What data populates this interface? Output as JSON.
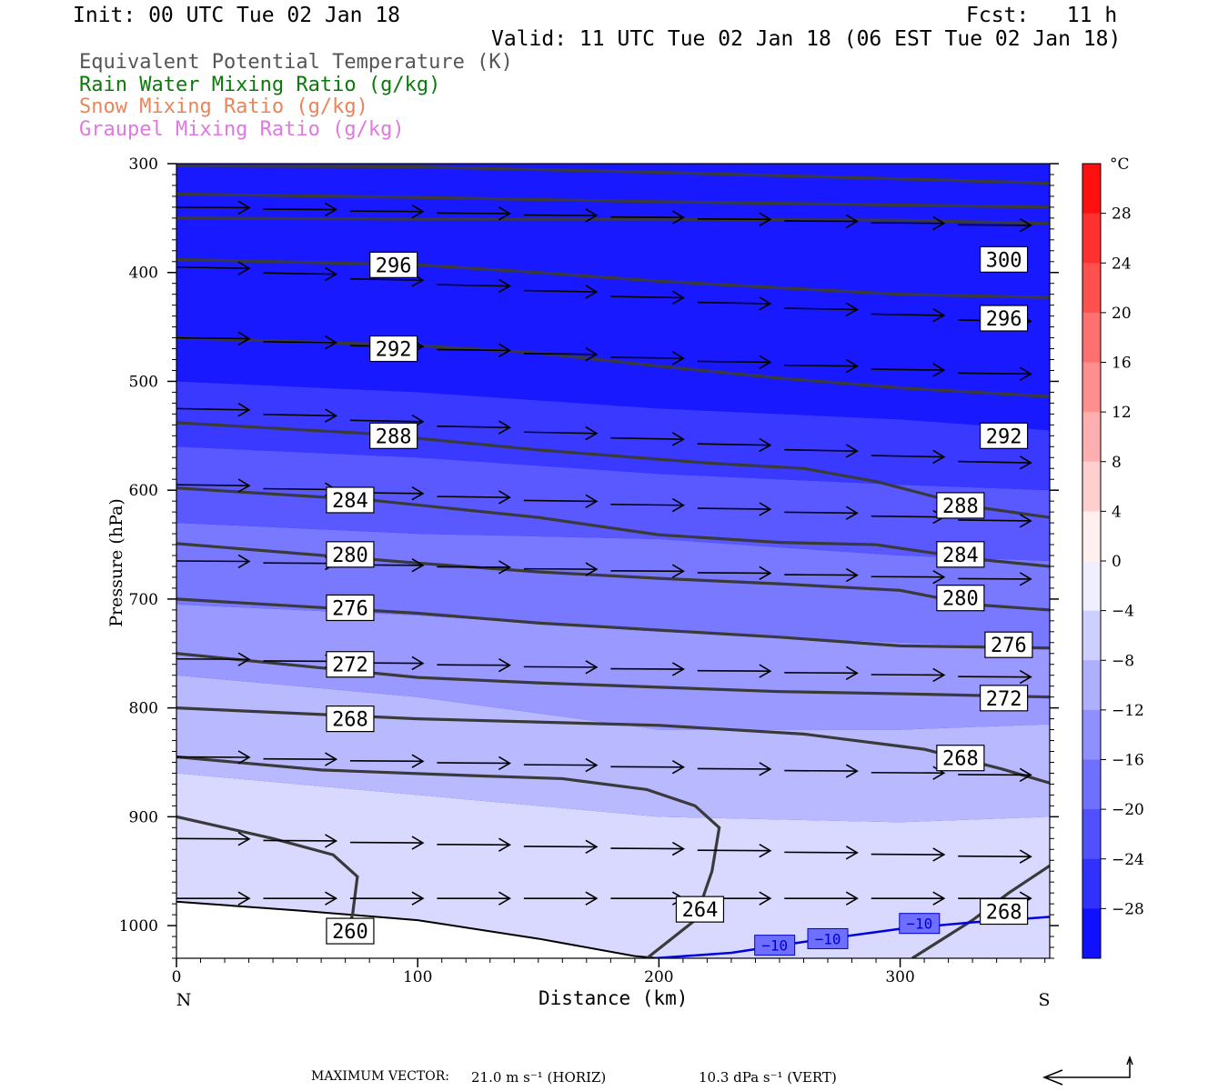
{
  "header": {
    "init": "Init: 00 UTC Tue 02 Jan 18",
    "fcst": "Fcst:   11 h",
    "valid": "Valid: 11 UTC Tue 02 Jan 18 (06 EST Tue 02 Jan 18)",
    "legend": [
      {
        "text": "Equivalent Potential Temperature (K)",
        "color": "#555555"
      },
      {
        "text": "Rain Water Mixing Ratio (g/kg)",
        "color": "#0b7a0b"
      },
      {
        "text": "Snow Mixing Ratio (g/kg)",
        "color": "#e8855a"
      },
      {
        "text": "Graupel Mixing Ratio (g/kg)",
        "color": "#e078e0"
      }
    ]
  },
  "footer": {
    "label": "MAXIMUM VECTOR:",
    "horiz": "21.0 m s⁻¹ (HORIZ)",
    "vert": "10.3 dPa s⁻¹ (VERT)"
  },
  "chart_data": {
    "type": "cross-section",
    "xlabel": "Distance (km)",
    "ylabel": "Pressure (hPa)",
    "xlim": [
      0,
      362
    ],
    "ylim": [
      1030,
      300
    ],
    "x_ticks": [
      0,
      100,
      200,
      300
    ],
    "y_ticks": [
      300,
      400,
      500,
      600,
      700,
      800,
      900,
      1000
    ],
    "left_end_label": "N",
    "right_end_label": "S",
    "colorbar": {
      "unit": "°C",
      "labels": [
        28,
        24,
        20,
        16,
        12,
        8,
        4,
        0,
        -4,
        -8,
        -12,
        -16,
        -20,
        -24,
        -28
      ],
      "min": -32,
      "max": 32,
      "step": 4,
      "warm_color": "#ff0000",
      "cold_color": "#0000ff"
    },
    "theta_e_contours": [
      {
        "label": "300",
        "points": [
          [
            0,
            302
          ],
          [
            100,
            303
          ],
          [
            200,
            308
          ],
          [
            300,
            314
          ],
          [
            362,
            318
          ]
        ]
      },
      {
        "label": "",
        "points": [
          [
            0,
            328
          ],
          [
            100,
            331
          ],
          [
            200,
            335
          ],
          [
            300,
            338
          ],
          [
            362,
            340
          ]
        ]
      },
      {
        "label": "",
        "points": [
          [
            0,
            350
          ],
          [
            100,
            351
          ],
          [
            200,
            351
          ],
          [
            300,
            352
          ],
          [
            362,
            355
          ]
        ]
      },
      {
        "label": "300",
        "points": [
          [
            0,
            388
          ],
          [
            100,
            393
          ],
          [
            150,
            400
          ],
          [
            200,
            408
          ],
          [
            250,
            414
          ],
          [
            300,
            420
          ],
          [
            362,
            423
          ]
        ]
      },
      {
        "label": "296",
        "points": [
          [
            0,
            460
          ],
          [
            100,
            467
          ],
          [
            150,
            474
          ],
          [
            200,
            486
          ],
          [
            250,
            497
          ],
          [
            300,
            506
          ],
          [
            362,
            514
          ]
        ]
      },
      {
        "label": "292",
        "points": [
          [
            0,
            538
          ],
          [
            80,
            548
          ],
          [
            150,
            563
          ],
          [
            220,
            575
          ],
          [
            260,
            580
          ],
          [
            290,
            592
          ],
          [
            330,
            615
          ],
          [
            362,
            625
          ]
        ]
      },
      {
        "label": "288",
        "points": [
          [
            0,
            598
          ],
          [
            80,
            609
          ],
          [
            150,
            625
          ],
          [
            200,
            641
          ],
          [
            250,
            648
          ],
          [
            290,
            650
          ],
          [
            330,
            663
          ],
          [
            362,
            670
          ]
        ]
      },
      {
        "label": "284",
        "points": [
          [
            0,
            649
          ],
          [
            100,
            667
          ],
          [
            150,
            675
          ],
          [
            200,
            681
          ],
          [
            250,
            686
          ],
          [
            300,
            692
          ],
          [
            330,
            705
          ],
          [
            362,
            710
          ]
        ]
      },
      {
        "label": "280",
        "points": [
          [
            0,
            700
          ],
          [
            100,
            713
          ],
          [
            150,
            722
          ],
          [
            250,
            735
          ],
          [
            300,
            743
          ],
          [
            362,
            745
          ]
        ]
      },
      {
        "label": "276",
        "points": [
          [
            0,
            750
          ],
          [
            100,
            772
          ],
          [
            150,
            777
          ],
          [
            250,
            785
          ],
          [
            300,
            787
          ],
          [
            362,
            790
          ]
        ]
      },
      {
        "label": "272",
        "points": [
          [
            0,
            800
          ],
          [
            100,
            810
          ],
          [
            200,
            816
          ],
          [
            260,
            824
          ],
          [
            310,
            838
          ],
          [
            342,
            856
          ],
          [
            362,
            869
          ]
        ]
      },
      {
        "label": "268",
        "points": [
          [
            0,
            845
          ],
          [
            60,
            857
          ],
          [
            120,
            862
          ],
          [
            160,
            865
          ],
          [
            195,
            875
          ],
          [
            215,
            890
          ],
          [
            225,
            910
          ],
          [
            222,
            950
          ],
          [
            215,
            995
          ],
          [
            195,
            1030
          ]
        ]
      },
      {
        "label": "264",
        "points": [
          [
            0,
            900
          ],
          [
            40,
            920
          ],
          [
            65,
            935
          ],
          [
            75,
            955
          ],
          [
            73,
            990
          ],
          [
            70,
            1010
          ]
        ]
      },
      {
        "label": "268",
        "points": [
          [
            362,
            945
          ],
          [
            345,
            970
          ],
          [
            330,
            995
          ],
          [
            305,
            1030
          ]
        ]
      }
    ],
    "theta_e_labels": [
      {
        "text": "300",
        "x": 343,
        "p": 388
      },
      {
        "text": "296",
        "x": 90,
        "p": 393
      },
      {
        "text": "296",
        "x": 343,
        "p": 442
      },
      {
        "text": "292",
        "x": 90,
        "p": 470
      },
      {
        "text": "292",
        "x": 343,
        "p": 550
      },
      {
        "text": "288",
        "x": 90,
        "p": 550
      },
      {
        "text": "288",
        "x": 325,
        "p": 614
      },
      {
        "text": "284",
        "x": 72,
        "p": 609
      },
      {
        "text": "284",
        "x": 325,
        "p": 659
      },
      {
        "text": "280",
        "x": 72,
        "p": 659
      },
      {
        "text": "280",
        "x": 325,
        "p": 699
      },
      {
        "text": "276",
        "x": 72,
        "p": 708
      },
      {
        "text": "276",
        "x": 345,
        "p": 742
      },
      {
        "text": "272",
        "x": 72,
        "p": 760
      },
      {
        "text": "272",
        "x": 343,
        "p": 791
      },
      {
        "text": "268",
        "x": 72,
        "p": 810
      },
      {
        "text": "268",
        "x": 325,
        "p": 846
      },
      {
        "text": "264",
        "x": 217,
        "p": 985
      },
      {
        "text": "268",
        "x": 343,
        "p": 987
      },
      {
        "text": "260",
        "x": 72,
        "p": 1005
      }
    ],
    "temperature_contours": [
      {
        "label": "-10",
        "points": [
          [
            198,
            1030
          ],
          [
            230,
            1025
          ],
          [
            260,
            1015
          ],
          [
            300,
            1003
          ],
          [
            330,
            997
          ],
          [
            362,
            992
          ]
        ]
      }
    ],
    "temperature_labels": [
      {
        "text": "-10",
        "x": 248,
        "p": 1018
      },
      {
        "text": "-10",
        "x": 270,
        "p": 1012
      },
      {
        "text": "-10",
        "x": 308,
        "p": 998
      }
    ],
    "temperature_shading_bands": [
      {
        "level": -28,
        "points": [
          [
            0,
            300
          ],
          [
            362,
            300
          ],
          [
            362,
            545
          ],
          [
            300,
            535
          ],
          [
            200,
            525
          ],
          [
            100,
            510
          ],
          [
            0,
            500
          ]
        ]
      },
      {
        "level": -24,
        "points": [
          [
            0,
            500
          ],
          [
            100,
            510
          ],
          [
            200,
            525
          ],
          [
            300,
            535
          ],
          [
            362,
            545
          ],
          [
            362,
            600
          ],
          [
            300,
            595
          ],
          [
            200,
            585
          ],
          [
            100,
            570
          ],
          [
            0,
            560
          ]
        ]
      },
      {
        "level": -20,
        "points": [
          [
            0,
            560
          ],
          [
            100,
            570
          ],
          [
            200,
            585
          ],
          [
            300,
            595
          ],
          [
            362,
            600
          ],
          [
            362,
            665
          ],
          [
            300,
            660
          ],
          [
            200,
            645
          ],
          [
            100,
            640
          ],
          [
            0,
            630
          ]
        ]
      },
      {
        "level": -16,
        "points": [
          [
            0,
            630
          ],
          [
            100,
            640
          ],
          [
            200,
            645
          ],
          [
            300,
            660
          ],
          [
            362,
            665
          ],
          [
            362,
            745
          ],
          [
            300,
            740
          ],
          [
            200,
            730
          ],
          [
            100,
            715
          ],
          [
            0,
            705
          ]
        ]
      },
      {
        "level": -12,
        "points": [
          [
            0,
            705
          ],
          [
            100,
            715
          ],
          [
            200,
            730
          ],
          [
            300,
            740
          ],
          [
            362,
            745
          ],
          [
            362,
            815
          ],
          [
            300,
            820
          ],
          [
            200,
            820
          ],
          [
            100,
            790
          ],
          [
            0,
            770
          ]
        ]
      },
      {
        "level": -8,
        "points": [
          [
            0,
            770
          ],
          [
            100,
            790
          ],
          [
            200,
            820
          ],
          [
            300,
            820
          ],
          [
            362,
            815
          ],
          [
            362,
            900
          ],
          [
            300,
            905
          ],
          [
            200,
            900
          ],
          [
            100,
            880
          ],
          [
            0,
            860
          ]
        ]
      },
      {
        "level": -4,
        "points": [
          [
            0,
            860
          ],
          [
            100,
            880
          ],
          [
            200,
            900
          ],
          [
            300,
            905
          ],
          [
            362,
            900
          ],
          [
            362,
            1030
          ],
          [
            0,
            1030
          ]
        ]
      }
    ],
    "wind_arrow_rows": [
      {
        "p": 340,
        "u": 1.0,
        "w": 0.05
      },
      {
        "p": 395,
        "u": 1.0,
        "w": 0.15
      },
      {
        "p": 460,
        "u": 1.0,
        "w": 0.1
      },
      {
        "p": 525,
        "u": 1.0,
        "w": 0.15
      },
      {
        "p": 595,
        "u": 1.0,
        "w": 0.1
      },
      {
        "p": 665,
        "u": 1.0,
        "w": 0.05
      },
      {
        "p": 755,
        "u": 1.0,
        "w": 0.05
      },
      {
        "p": 845,
        "u": 1.0,
        "w": 0.05
      },
      {
        "p": 920,
        "u": 1.0,
        "w": 0.05
      },
      {
        "p": 975,
        "u": 1.0,
        "w": 0.0
      }
    ],
    "terrain": [
      [
        0,
        978
      ],
      [
        50,
        986
      ],
      [
        100,
        995
      ],
      [
        150,
        1012
      ],
      [
        190,
        1028
      ],
      [
        200,
        1030
      ]
    ]
  }
}
